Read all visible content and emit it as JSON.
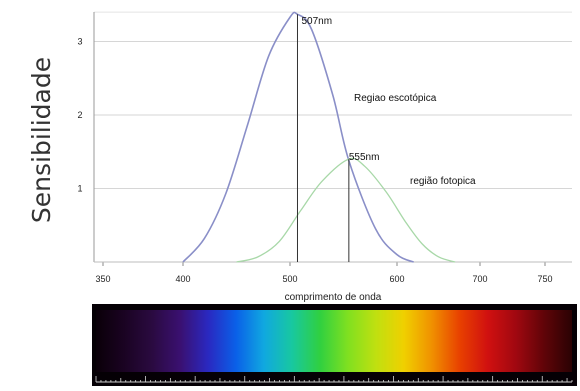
{
  "chart_data": {
    "type": "line",
    "title": "",
    "ylabel": "Sensibilidade",
    "xlabel": "comprimento de onda",
    "xlim": [
      350,
      750
    ],
    "ylim": [
      0,
      3.4
    ],
    "xticks": [
      350,
      400,
      500,
      600,
      700,
      750
    ],
    "yticks": [
      1,
      2,
      3
    ],
    "grid": true,
    "series": [
      {
        "name": "Regiao escotópica",
        "color": "#8a8fc8",
        "peak": 507,
        "x": [
          400,
          420,
          440,
          460,
          480,
          500,
          507,
          520,
          540,
          555,
          580,
          600,
          620
        ],
        "y": [
          0.0,
          0.32,
          0.93,
          1.85,
          2.8,
          3.33,
          3.37,
          3.17,
          2.27,
          1.38,
          0.45,
          0.1,
          0.0
        ]
      },
      {
        "name": "região fotopica",
        "color": "#a8d8a8",
        "peak": 555,
        "x": [
          450,
          470,
          490,
          510,
          530,
          555,
          570,
          590,
          610,
          630,
          650,
          670
        ],
        "y": [
          0.0,
          0.07,
          0.28,
          0.7,
          1.1,
          1.4,
          1.3,
          0.95,
          0.55,
          0.25,
          0.07,
          0.0
        ]
      }
    ],
    "annotations": [
      {
        "text": "507nm",
        "x": 507
      },
      {
        "text": "555nm",
        "x": 555
      }
    ]
  },
  "spectrum": {
    "colors": [
      "#0a0008",
      "#1a0322",
      "#2a0a40",
      "#3a1070",
      "#2a28c0",
      "#0a60e8",
      "#10a8e0",
      "#18c8a0",
      "#30d040",
      "#80e020",
      "#c0e010",
      "#f0d000",
      "#f09000",
      "#e84000",
      "#d01010",
      "#a00810",
      "#600408",
      "#2a0204"
    ]
  }
}
